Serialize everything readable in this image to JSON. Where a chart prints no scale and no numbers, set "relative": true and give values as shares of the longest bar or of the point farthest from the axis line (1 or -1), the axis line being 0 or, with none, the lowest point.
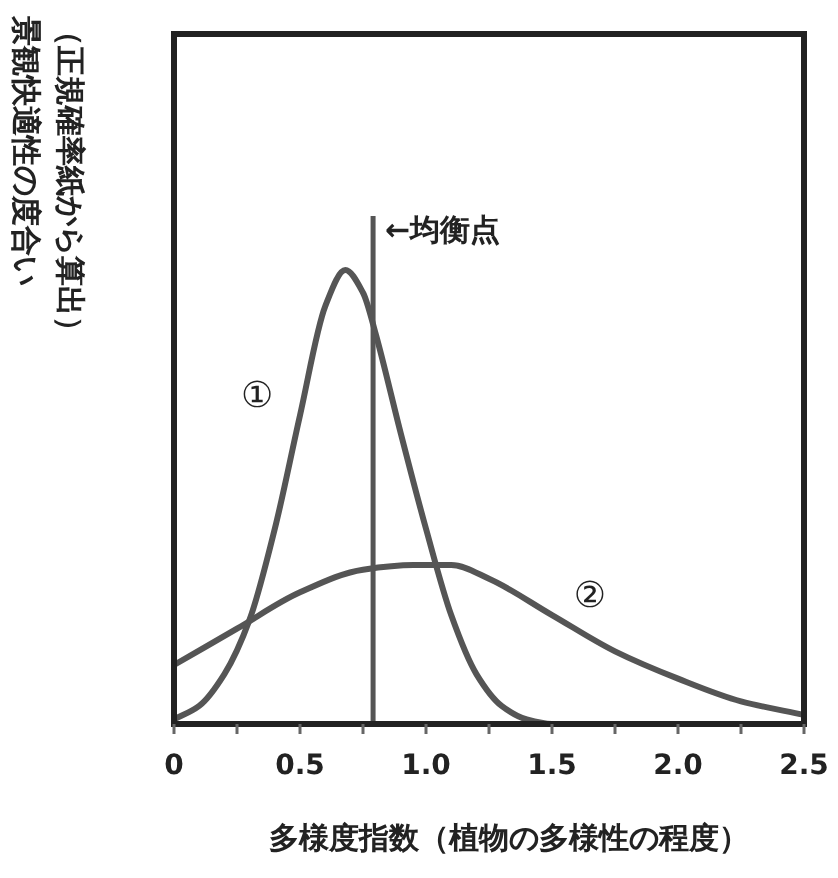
{
  "chart_data": {
    "type": "line",
    "relative": true,
    "xlabel": "多様度指数（植物の多様性の程度）",
    "ylabel": "景観快適性の度合い",
    "xlim": [
      0,
      2.5
    ],
    "xticks": [
      0,
      {
        "value": 0.25,
        "label": null
      },
      0.5,
      {
        "value": 0.75,
        "label": null
      },
      {
        "value": 1.0,
        "label": "1.0"
      },
      {
        "value": 1.25,
        "label": null
      },
      1.5,
      {
        "value": 1.75,
        "label": null
      },
      {
        "value": 2.0,
        "label": "2.0"
      },
      {
        "value": 2.25,
        "label": null
      },
      2.5
    ],
    "line_style": "solid",
    "series": [
      {
        "color": "#555555",
        "x": [
          0,
          0.1,
          0.2,
          0.3,
          0.4,
          0.5,
          0.6,
          0.68,
          0.75,
          0.8,
          0.9,
          1.0,
          1.1,
          1.2,
          1.3,
          1.4,
          1.5,
          2.0,
          2.5
        ],
        "values": [
          0.01,
          0.04,
          0.11,
          0.23,
          0.43,
          0.68,
          0.92,
          1.0,
          0.95,
          0.86,
          0.64,
          0.43,
          0.24,
          0.11,
          0.04,
          0.01,
          0,
          0,
          0
        ]
      },
      {
        "color": "#555555",
        "x": [
          0,
          0.25,
          0.5,
          0.75,
          0.95,
          1.1,
          1.25,
          1.5,
          1.75,
          2.0,
          2.25,
          2.5
        ],
        "values": [
          0.13,
          0.21,
          0.29,
          0.34,
          0.35,
          0.35,
          0.32,
          0.24,
          0.16,
          0.1,
          0.05,
          0.02
        ]
      }
    ],
    "ref_lines": [
      {
        "axis": "x",
        "value": 0.79,
        "label": "←均衡点",
        "color": "#555555"
      }
    ],
    "annotations": [
      "①",
      "②",
      "（正規確率紙から算出）"
    ]
  }
}
